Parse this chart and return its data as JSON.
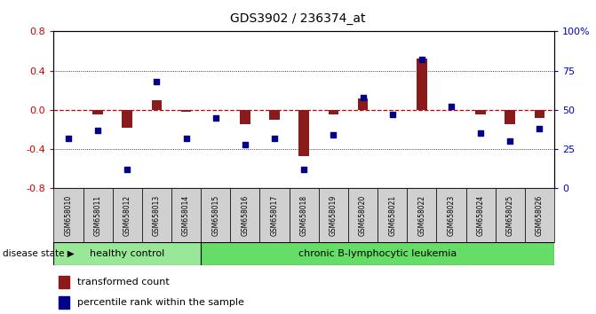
{
  "title": "GDS3902 / 236374_at",
  "samples": [
    "GSM658010",
    "GSM658011",
    "GSM658012",
    "GSM658013",
    "GSM658014",
    "GSM658015",
    "GSM658016",
    "GSM658017",
    "GSM658018",
    "GSM658019",
    "GSM658020",
    "GSM658021",
    "GSM658022",
    "GSM658023",
    "GSM658024",
    "GSM658025",
    "GSM658026"
  ],
  "red_bars": [
    0.0,
    -0.05,
    -0.18,
    0.1,
    -0.02,
    0.0,
    -0.15,
    -0.1,
    -0.47,
    -0.05,
    0.12,
    0.0,
    0.52,
    0.0,
    -0.05,
    -0.15,
    -0.08
  ],
  "blue_squares": [
    32,
    37,
    12,
    68,
    32,
    45,
    28,
    32,
    12,
    34,
    58,
    47,
    82,
    52,
    35,
    30,
    38
  ],
  "healthy_count": 5,
  "ylim_left": [
    -0.8,
    0.8
  ],
  "ylim_right": [
    0,
    100
  ],
  "yticks_left": [
    -0.8,
    -0.4,
    0.0,
    0.4,
    0.8
  ],
  "yticks_right": [
    0,
    25,
    50,
    75,
    100
  ],
  "ytick_labels_right": [
    "0",
    "25",
    "50",
    "75",
    "100%"
  ],
  "bar_color": "#8B1A1A",
  "square_color": "#00008B",
  "healthy_bg": "#90EE90",
  "cll_bg": "#90EE90",
  "label_bar": "transformed count",
  "label_square": "percentile rank within the sample",
  "disease_state_label": "disease state",
  "healthy_label": "healthy control",
  "cll_label": "chronic B-lymphocytic leukemia",
  "hline_color": "#CC0000",
  "dotted_vals": [
    -0.4,
    0.4
  ]
}
